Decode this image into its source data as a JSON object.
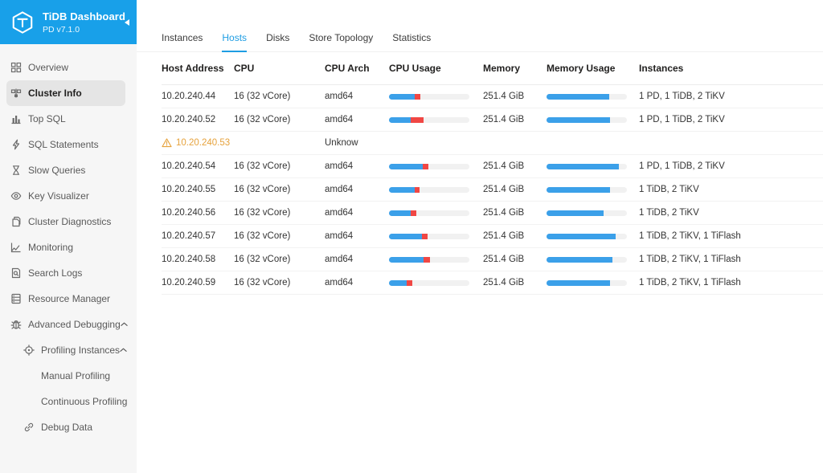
{
  "app": {
    "title": "TiDB Dashboard",
    "version": "PD v7.1.0"
  },
  "colors": {
    "header_blue": "#18a0e9",
    "tab_active_blue": "#1e9de3",
    "bar_blue": "#3ba0e9",
    "bar_red": "#f04744",
    "warning_orange": "#e6a23c"
  },
  "sidebar": {
    "items": [
      {
        "label": "Overview",
        "icon": "grid",
        "active": false,
        "level": 0,
        "expandable": false
      },
      {
        "label": "Cluster Info",
        "icon": "cluster",
        "active": true,
        "level": 0,
        "expandable": false
      },
      {
        "label": "Top SQL",
        "icon": "bar-chart",
        "active": false,
        "level": 0,
        "expandable": false
      },
      {
        "label": "SQL Statements",
        "icon": "thunderbolt",
        "active": false,
        "level": 0,
        "expandable": false
      },
      {
        "label": "Slow Queries",
        "icon": "hourglass",
        "active": false,
        "level": 0,
        "expandable": false
      },
      {
        "label": "Key Visualizer",
        "icon": "eye",
        "active": false,
        "level": 0,
        "expandable": false
      },
      {
        "label": "Cluster Diagnostics",
        "icon": "file",
        "active": false,
        "level": 0,
        "expandable": false
      },
      {
        "label": "Monitoring",
        "icon": "line-chart",
        "active": false,
        "level": 0,
        "expandable": false
      },
      {
        "label": "Search Logs",
        "icon": "file-search",
        "active": false,
        "level": 0,
        "expandable": false
      },
      {
        "label": "Resource Manager",
        "icon": "database",
        "active": false,
        "level": 0,
        "expandable": false
      },
      {
        "label": "Advanced Debugging",
        "icon": "bug",
        "active": false,
        "level": 0,
        "expandable": true
      },
      {
        "label": "Profiling Instances",
        "icon": "aim",
        "active": false,
        "level": 1,
        "expandable": true
      },
      {
        "label": "Manual Profiling",
        "icon": "",
        "active": false,
        "level": 2,
        "expandable": false
      },
      {
        "label": "Continuous Profiling",
        "icon": "",
        "active": false,
        "level": 2,
        "expandable": false
      },
      {
        "label": "Debug Data",
        "icon": "link",
        "active": false,
        "level": 1,
        "expandable": false
      }
    ]
  },
  "tabs": {
    "items": [
      "Instances",
      "Hosts",
      "Disks",
      "Store Topology",
      "Statistics"
    ],
    "active": "Hosts"
  },
  "table": {
    "columns": [
      "Host Address",
      "CPU",
      "CPU Arch",
      "CPU Usage",
      "Memory",
      "Memory Usage",
      "Instances"
    ],
    "rows": [
      {
        "host": "10.20.240.44",
        "warning": false,
        "cpu": "16 (32 vCore)",
        "arch": "amd64",
        "cpu_blue": 32,
        "cpu_red": 7,
        "memory": "251.4 GiB",
        "mem_pct": 78,
        "instances": "1 PD, 1 TiDB, 2 TiKV"
      },
      {
        "host": "10.20.240.52",
        "warning": false,
        "cpu": "16 (32 vCore)",
        "arch": "amd64",
        "cpu_blue": 27,
        "cpu_red": 16,
        "memory": "251.4 GiB",
        "mem_pct": 79,
        "instances": "1 PD, 1 TiDB, 2 TiKV"
      },
      {
        "host": "10.20.240.53",
        "warning": true,
        "cpu": "",
        "arch": "Unknow",
        "cpu_blue": 0,
        "cpu_red": 0,
        "memory": "",
        "mem_pct": 0,
        "instances": ""
      },
      {
        "host": "10.20.240.54",
        "warning": false,
        "cpu": "16 (32 vCore)",
        "arch": "amd64",
        "cpu_blue": 42,
        "cpu_red": 7,
        "memory": "251.4 GiB",
        "mem_pct": 90,
        "instances": "1 PD, 1 TiDB, 2 TiKV"
      },
      {
        "host": "10.20.240.55",
        "warning": false,
        "cpu": "16 (32 vCore)",
        "arch": "amd64",
        "cpu_blue": 32,
        "cpu_red": 6,
        "memory": "251.4 GiB",
        "mem_pct": 79,
        "instances": "1 TiDB, 2 TiKV"
      },
      {
        "host": "10.20.240.56",
        "warning": false,
        "cpu": "16 (32 vCore)",
        "arch": "amd64",
        "cpu_blue": 27,
        "cpu_red": 7,
        "memory": "251.4 GiB",
        "mem_pct": 71,
        "instances": "1 TiDB, 2 TiKV"
      },
      {
        "host": "10.20.240.57",
        "warning": false,
        "cpu": "16 (32 vCore)",
        "arch": "amd64",
        "cpu_blue": 41,
        "cpu_red": 7,
        "memory": "251.4 GiB",
        "mem_pct": 86,
        "instances": "1 TiDB, 2 TiKV, 1 TiFlash"
      },
      {
        "host": "10.20.240.58",
        "warning": false,
        "cpu": "16 (32 vCore)",
        "arch": "amd64",
        "cpu_blue": 43,
        "cpu_red": 8,
        "memory": "251.4 GiB",
        "mem_pct": 82,
        "instances": "1 TiDB, 2 TiKV, 1 TiFlash"
      },
      {
        "host": "10.20.240.59",
        "warning": false,
        "cpu": "16 (32 vCore)",
        "arch": "amd64",
        "cpu_blue": 22,
        "cpu_red": 7,
        "memory": "251.4 GiB",
        "mem_pct": 79,
        "instances": "1 TiDB, 2 TiKV, 1 TiFlash"
      }
    ]
  }
}
